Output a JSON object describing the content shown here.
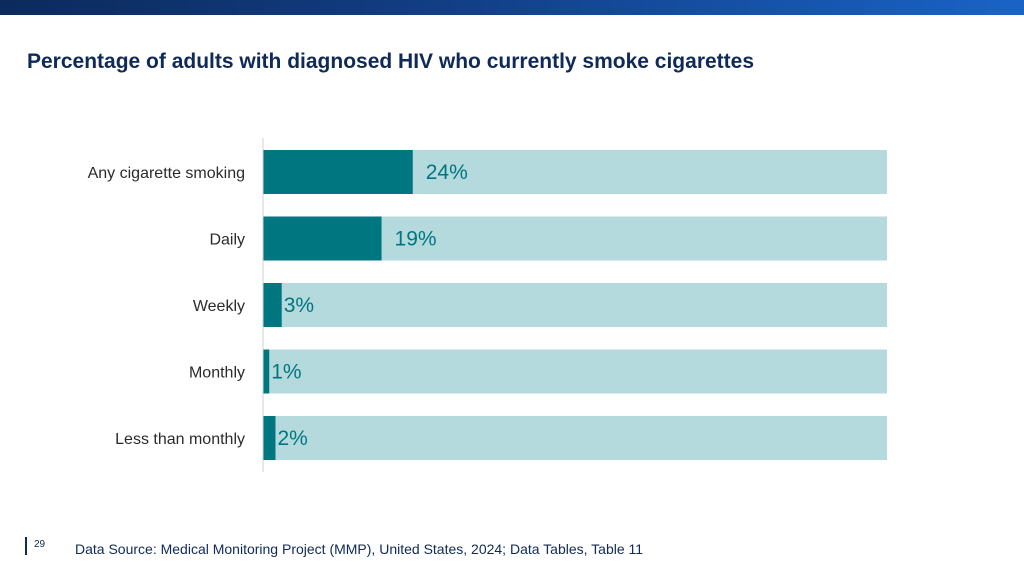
{
  "slide": {
    "page_number": "29",
    "source": "Data Source: Medical Monitoring Project (MMP), United States, 2024; Data Tables, Table 11"
  },
  "colors": {
    "top_band": "#123f86",
    "title": "#0f2a57",
    "bar_value": "#007680",
    "bar_track": "#b5dadd",
    "value_text": "#007680",
    "axis": "#d0d0d0"
  },
  "chart_data": {
    "type": "bar",
    "orientation": "horizontal",
    "title": "Percentage of adults with diagnosed HIV who currently smoke cigarettes",
    "xlabel": "",
    "ylabel": "",
    "xlim": [
      0,
      100
    ],
    "grid": false,
    "legend": "none",
    "categories": [
      "Any cigarette smoking",
      "Daily",
      "Weekly",
      "Monthly",
      "Less than monthly"
    ],
    "values": [
      24,
      19,
      3,
      1,
      2
    ],
    "value_labels": [
      "24%",
      "19%",
      "3%",
      "1%",
      "2%"
    ]
  }
}
